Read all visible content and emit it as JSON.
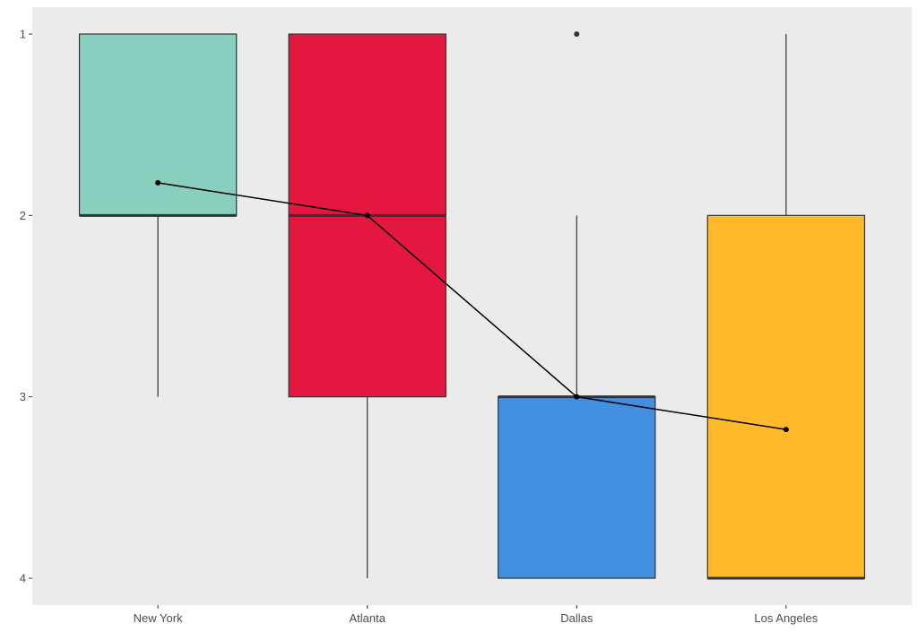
{
  "chart_data": {
    "type": "boxplot",
    "title": "",
    "xlabel": "",
    "ylabel": "",
    "y_reversed": true,
    "ylim": [
      4.15,
      0.85
    ],
    "y_ticks": [
      1,
      2,
      3,
      4
    ],
    "y_tick_labels": [
      "1",
      "2",
      "3",
      "4"
    ],
    "grid": false,
    "panel_background": "#ebebeb",
    "categories": [
      "New York",
      "Atlanta",
      "Dallas",
      "Los Angeles"
    ],
    "boxes": [
      {
        "category": "New York",
        "whisker_low": 1,
        "q1": 1,
        "median": 2,
        "q3": 2,
        "whisker_high": 3,
        "outliers": [],
        "fill": "#88d0bd"
      },
      {
        "category": "Atlanta",
        "whisker_low": 1,
        "q1": 1,
        "median": 2,
        "q3": 3,
        "whisker_high": 4,
        "outliers": [],
        "fill": "#e3173f"
      },
      {
        "category": "Dallas",
        "whisker_low": 2,
        "q1": 3,
        "median": 3,
        "q3": 4,
        "whisker_high": 4,
        "outliers": [
          1
        ],
        "fill": "#428fe0"
      },
      {
        "category": "Los Angeles",
        "whisker_low": 1,
        "q1": 2,
        "median": 4,
        "q3": 4,
        "whisker_high": 4,
        "outliers": [],
        "fill": "#ffb92a"
      }
    ],
    "mean_line": {
      "values": [
        1.82,
        2.0,
        3.0,
        3.18
      ],
      "color": "#000000"
    }
  }
}
